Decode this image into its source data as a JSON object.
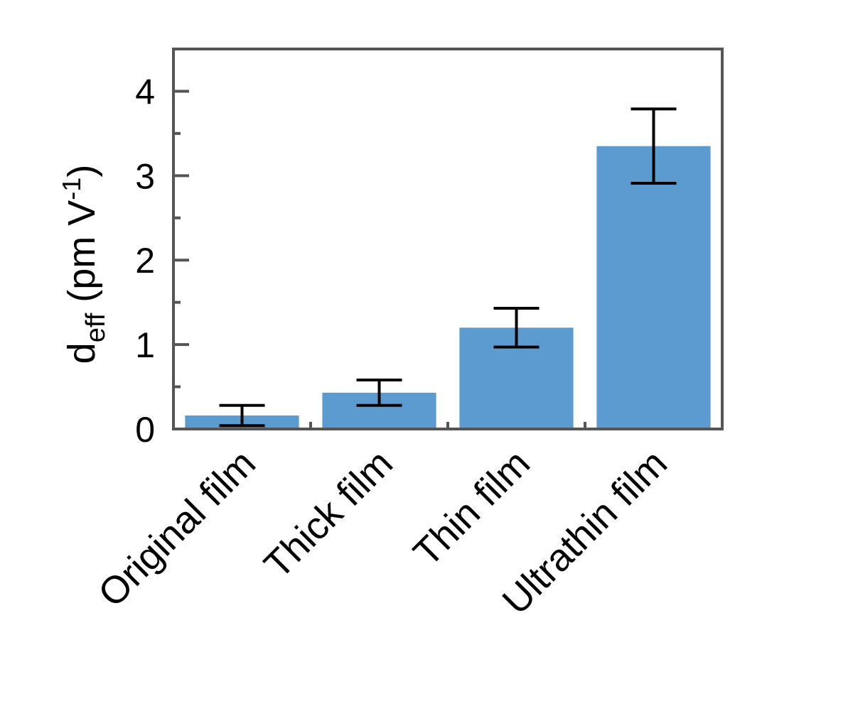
{
  "chart_data": {
    "type": "bar",
    "y_label": {
      "parts": [
        "d",
        "eff",
        " (pm V",
        "-1",
        ")"
      ]
    },
    "categories": [
      "Original film",
      "Thick film",
      "Thin film",
      "Ultrathin film"
    ],
    "values": [
      0.16,
      0.43,
      1.2,
      3.35
    ],
    "errors": [
      0.12,
      0.15,
      0.23,
      0.44
    ],
    "color": "#5b9bd0",
    "ylim": [
      0,
      4.5
    ],
    "yticks": [
      0,
      1,
      2,
      3,
      4
    ],
    "yminorticks": [
      0.5,
      1.5,
      2.5,
      3.5
    ],
    "grid": false
  }
}
